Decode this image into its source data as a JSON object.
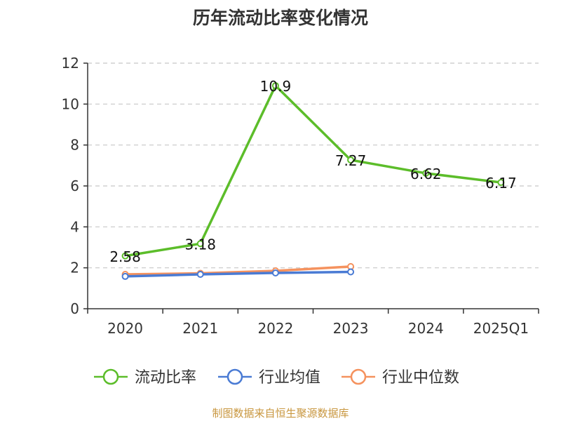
{
  "chart_data": {
    "type": "line",
    "title": "历年流动比率变化情况",
    "categories": [
      "2020",
      "2021",
      "2022",
      "2023",
      "2024",
      "2025Q1"
    ],
    "ylim": [
      0,
      12
    ],
    "yticks": [
      "0",
      "2",
      "4",
      "6",
      "8",
      "10",
      "12"
    ],
    "grid": true,
    "legend_position": "bottom",
    "series": [
      {
        "name": "流动比率",
        "color": "#5cbd2a",
        "values": [
          2.58,
          3.18,
          10.9,
          7.27,
          6.62,
          6.17
        ],
        "labels": [
          "2.58",
          "3.18",
          "10.9",
          "7.27",
          "6.62",
          "6.17"
        ]
      },
      {
        "name": "行业均值",
        "color": "#4a7bd4",
        "values": [
          1.58,
          1.68,
          1.75,
          1.8,
          null,
          null
        ]
      },
      {
        "name": "行业中位数",
        "color": "#f5925e",
        "values": [
          1.68,
          1.73,
          1.85,
          2.06,
          null,
          null
        ]
      }
    ]
  },
  "source": "制图数据来自恒生聚源数据库"
}
